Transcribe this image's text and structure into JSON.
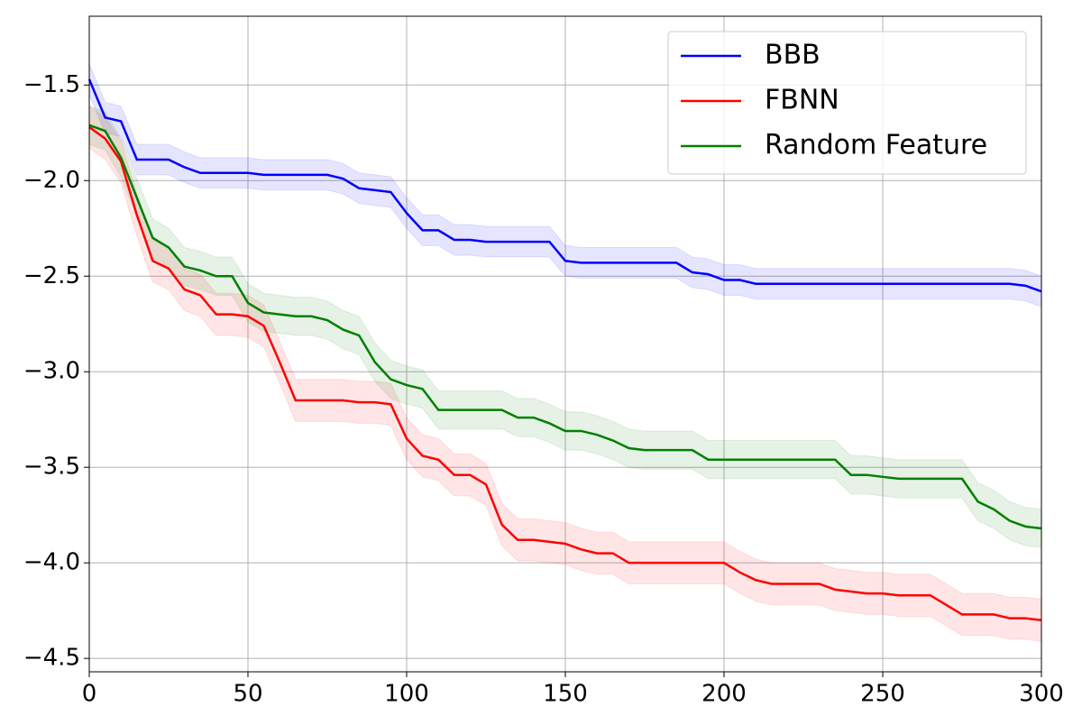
{
  "chart_data": {
    "type": "line",
    "title": null,
    "x": [
      0,
      5,
      10,
      15,
      20,
      25,
      30,
      35,
      40,
      45,
      50,
      55,
      60,
      65,
      70,
      75,
      80,
      85,
      90,
      95,
      100,
      105,
      110,
      115,
      120,
      125,
      130,
      135,
      140,
      145,
      150,
      155,
      160,
      165,
      170,
      175,
      180,
      185,
      190,
      195,
      200,
      205,
      210,
      215,
      220,
      225,
      230,
      235,
      240,
      245,
      250,
      255,
      260,
      265,
      270,
      275,
      280,
      285,
      290,
      295,
      300
    ],
    "series": [
      {
        "name": "BBB",
        "color": "#0000ff",
        "band_color": "#0000ff",
        "spread": 0.08,
        "values": [
          -1.47,
          -1.67,
          -1.69,
          -1.89,
          -1.89,
          -1.89,
          -1.93,
          -1.96,
          -1.96,
          -1.96,
          -1.96,
          -1.97,
          -1.97,
          -1.97,
          -1.97,
          -1.97,
          -1.99,
          -2.04,
          -2.05,
          -2.06,
          -2.17,
          -2.26,
          -2.26,
          -2.31,
          -2.31,
          -2.32,
          -2.32,
          -2.32,
          -2.32,
          -2.32,
          -2.42,
          -2.43,
          -2.43,
          -2.43,
          -2.43,
          -2.43,
          -2.43,
          -2.43,
          -2.48,
          -2.49,
          -2.52,
          -2.52,
          -2.54,
          -2.54,
          -2.54,
          -2.54,
          -2.54,
          -2.54,
          -2.54,
          -2.54,
          -2.54,
          -2.54,
          -2.54,
          -2.54,
          -2.54,
          -2.54,
          -2.54,
          -2.54,
          -2.54,
          -2.55,
          -2.58
        ]
      },
      {
        "name": "FBNN",
        "color": "#ff0000",
        "band_color": "#ff0000",
        "spread": 0.11,
        "values": [
          -1.72,
          -1.78,
          -1.9,
          -2.18,
          -2.42,
          -2.46,
          -2.57,
          -2.6,
          -2.7,
          -2.7,
          -2.71,
          -2.76,
          -2.95,
          -3.15,
          -3.15,
          -3.15,
          -3.15,
          -3.16,
          -3.16,
          -3.17,
          -3.35,
          -3.44,
          -3.46,
          -3.54,
          -3.54,
          -3.59,
          -3.8,
          -3.88,
          -3.88,
          -3.89,
          -3.9,
          -3.93,
          -3.95,
          -3.95,
          -4.0,
          -4.0,
          -4.0,
          -4.0,
          -4.0,
          -4.0,
          -4.0,
          -4.05,
          -4.09,
          -4.11,
          -4.11,
          -4.11,
          -4.11,
          -4.14,
          -4.15,
          -4.16,
          -4.16,
          -4.17,
          -4.17,
          -4.17,
          -4.22,
          -4.27,
          -4.27,
          -4.27,
          -4.29,
          -4.29,
          -4.3
        ]
      },
      {
        "name": "Random Feature",
        "color": "#008000",
        "band_color": "#008000",
        "spread": 0.1,
        "values": [
          -1.71,
          -1.74,
          -1.88,
          -2.09,
          -2.3,
          -2.35,
          -2.45,
          -2.47,
          -2.5,
          -2.5,
          -2.64,
          -2.69,
          -2.7,
          -2.71,
          -2.71,
          -2.73,
          -2.78,
          -2.81,
          -2.95,
          -3.04,
          -3.07,
          -3.09,
          -3.2,
          -3.2,
          -3.2,
          -3.2,
          -3.2,
          -3.24,
          -3.24,
          -3.27,
          -3.31,
          -3.31,
          -3.33,
          -3.36,
          -3.4,
          -3.41,
          -3.41,
          -3.41,
          -3.41,
          -3.46,
          -3.46,
          -3.46,
          -3.46,
          -3.46,
          -3.46,
          -3.46,
          -3.46,
          -3.46,
          -3.54,
          -3.54,
          -3.55,
          -3.56,
          -3.56,
          -3.56,
          -3.56,
          -3.56,
          -3.68,
          -3.72,
          -3.78,
          -3.81,
          -3.82
        ]
      }
    ],
    "xlim": [
      0,
      300
    ],
    "xticks": [
      0,
      50,
      100,
      150,
      200,
      250,
      300
    ],
    "ylim": [
      -4.57,
      -1.14
    ],
    "yticks": [
      {
        "value": -4.5,
        "label": "−4.5"
      },
      {
        "value": -4.0,
        "label": "−4.0"
      },
      {
        "value": -3.5,
        "label": "−3.5"
      },
      {
        "value": -3.0,
        "label": "−3.0"
      },
      {
        "value": -2.5,
        "label": "−2.5"
      },
      {
        "value": -2.0,
        "label": "−2.0"
      },
      {
        "value": -1.5,
        "label": "−1.5"
      }
    ],
    "grid": true,
    "legend": "upper right"
  }
}
